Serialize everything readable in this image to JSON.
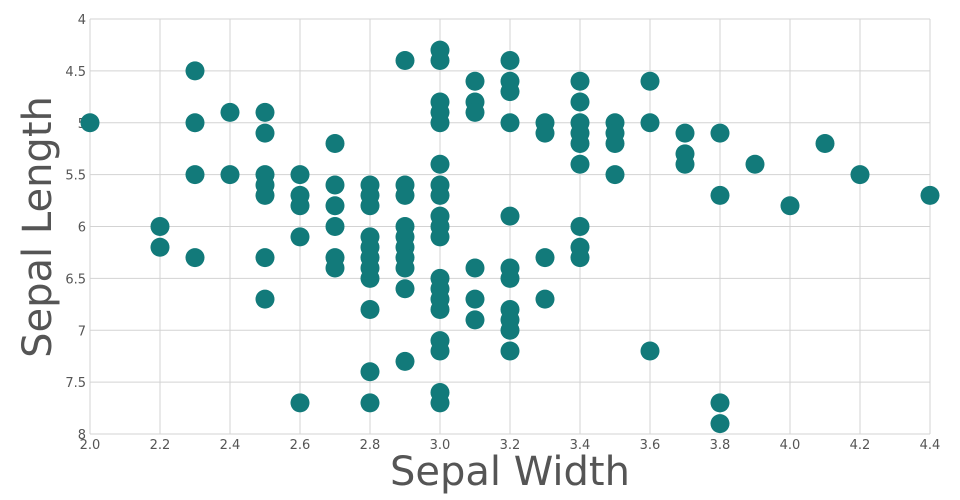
{
  "chart_data": {
    "type": "scatter",
    "title": "",
    "xlabel": "Sepal Width",
    "ylabel": "Sepal Length",
    "xlim": [
      2.0,
      4.4
    ],
    "ylim": [
      4,
      8
    ],
    "y_reversed": true,
    "grid": true,
    "legend": "none",
    "marker_color": "#127a7a",
    "x_ticks": [
      "2.0",
      "2.2",
      "2.4",
      "2.6",
      "2.8",
      "3.0",
      "3.2",
      "3.4",
      "3.6",
      "3.8",
      "4.0",
      "4.2",
      "4.4"
    ],
    "y_ticks": [
      "4",
      "4.5",
      "5",
      "5.5",
      "6",
      "6.5",
      "7",
      "7.5",
      "8"
    ],
    "points": [
      [
        2.0,
        5.0
      ],
      [
        2.2,
        6.0
      ],
      [
        2.2,
        6.2
      ],
      [
        2.3,
        4.5
      ],
      [
        2.3,
        5.0
      ],
      [
        2.3,
        5.5
      ],
      [
        2.3,
        6.3
      ],
      [
        2.4,
        4.9
      ],
      [
        2.4,
        5.5
      ],
      [
        2.5,
        4.9
      ],
      [
        2.5,
        5.1
      ],
      [
        2.5,
        5.5
      ],
      [
        2.5,
        5.6
      ],
      [
        2.5,
        5.7
      ],
      [
        2.5,
        6.3
      ],
      [
        2.5,
        6.7
      ],
      [
        2.6,
        5.5
      ],
      [
        2.6,
        5.7
      ],
      [
        2.6,
        5.8
      ],
      [
        2.6,
        6.1
      ],
      [
        2.6,
        7.7
      ],
      [
        2.7,
        5.2
      ],
      [
        2.7,
        5.6
      ],
      [
        2.7,
        5.8
      ],
      [
        2.7,
        6.0
      ],
      [
        2.7,
        6.3
      ],
      [
        2.7,
        6.4
      ],
      [
        2.8,
        5.6
      ],
      [
        2.8,
        5.7
      ],
      [
        2.8,
        5.8
      ],
      [
        2.8,
        6.1
      ],
      [
        2.8,
        6.2
      ],
      [
        2.8,
        6.3
      ],
      [
        2.8,
        6.4
      ],
      [
        2.8,
        6.5
      ],
      [
        2.8,
        6.8
      ],
      [
        2.8,
        7.4
      ],
      [
        2.8,
        7.7
      ],
      [
        2.9,
        4.4
      ],
      [
        2.9,
        5.6
      ],
      [
        2.9,
        5.7
      ],
      [
        2.9,
        6.0
      ],
      [
        2.9,
        6.1
      ],
      [
        2.9,
        6.2
      ],
      [
        2.9,
        6.3
      ],
      [
        2.9,
        6.4
      ],
      [
        2.9,
        6.6
      ],
      [
        2.9,
        7.3
      ],
      [
        3.0,
        4.3
      ],
      [
        3.0,
        4.4
      ],
      [
        3.0,
        4.8
      ],
      [
        3.0,
        4.9
      ],
      [
        3.0,
        5.0
      ],
      [
        3.0,
        5.4
      ],
      [
        3.0,
        5.6
      ],
      [
        3.0,
        5.7
      ],
      [
        3.0,
        5.9
      ],
      [
        3.0,
        6.0
      ],
      [
        3.0,
        6.1
      ],
      [
        3.0,
        6.5
      ],
      [
        3.0,
        6.6
      ],
      [
        3.0,
        6.7
      ],
      [
        3.0,
        6.8
      ],
      [
        3.0,
        7.1
      ],
      [
        3.0,
        7.2
      ],
      [
        3.0,
        7.6
      ],
      [
        3.0,
        7.7
      ],
      [
        3.1,
        4.6
      ],
      [
        3.1,
        4.8
      ],
      [
        3.1,
        4.9
      ],
      [
        3.1,
        6.4
      ],
      [
        3.1,
        6.7
      ],
      [
        3.1,
        6.9
      ],
      [
        3.2,
        4.4
      ],
      [
        3.2,
        4.6
      ],
      [
        3.2,
        4.7
      ],
      [
        3.2,
        5.0
      ],
      [
        3.2,
        5.9
      ],
      [
        3.2,
        6.4
      ],
      [
        3.2,
        6.5
      ],
      [
        3.2,
        6.8
      ],
      [
        3.2,
        6.9
      ],
      [
        3.2,
        7.0
      ],
      [
        3.2,
        7.2
      ],
      [
        3.3,
        5.0
      ],
      [
        3.3,
        5.1
      ],
      [
        3.3,
        6.3
      ],
      [
        3.3,
        6.7
      ],
      [
        3.4,
        4.6
      ],
      [
        3.4,
        4.8
      ],
      [
        3.4,
        5.0
      ],
      [
        3.4,
        5.1
      ],
      [
        3.4,
        5.2
      ],
      [
        3.4,
        5.4
      ],
      [
        3.4,
        6.0
      ],
      [
        3.4,
        6.2
      ],
      [
        3.4,
        6.3
      ],
      [
        3.5,
        5.0
      ],
      [
        3.5,
        5.1
      ],
      [
        3.5,
        5.2
      ],
      [
        3.5,
        5.5
      ],
      [
        3.6,
        4.6
      ],
      [
        3.6,
        5.0
      ],
      [
        3.6,
        7.2
      ],
      [
        3.7,
        5.1
      ],
      [
        3.7,
        5.3
      ],
      [
        3.7,
        5.4
      ],
      [
        3.8,
        5.1
      ],
      [
        3.8,
        5.7
      ],
      [
        3.8,
        7.7
      ],
      [
        3.8,
        7.9
      ],
      [
        3.9,
        5.4
      ],
      [
        4.0,
        5.8
      ],
      [
        4.1,
        5.2
      ],
      [
        4.2,
        5.5
      ],
      [
        4.4,
        5.7
      ]
    ]
  }
}
